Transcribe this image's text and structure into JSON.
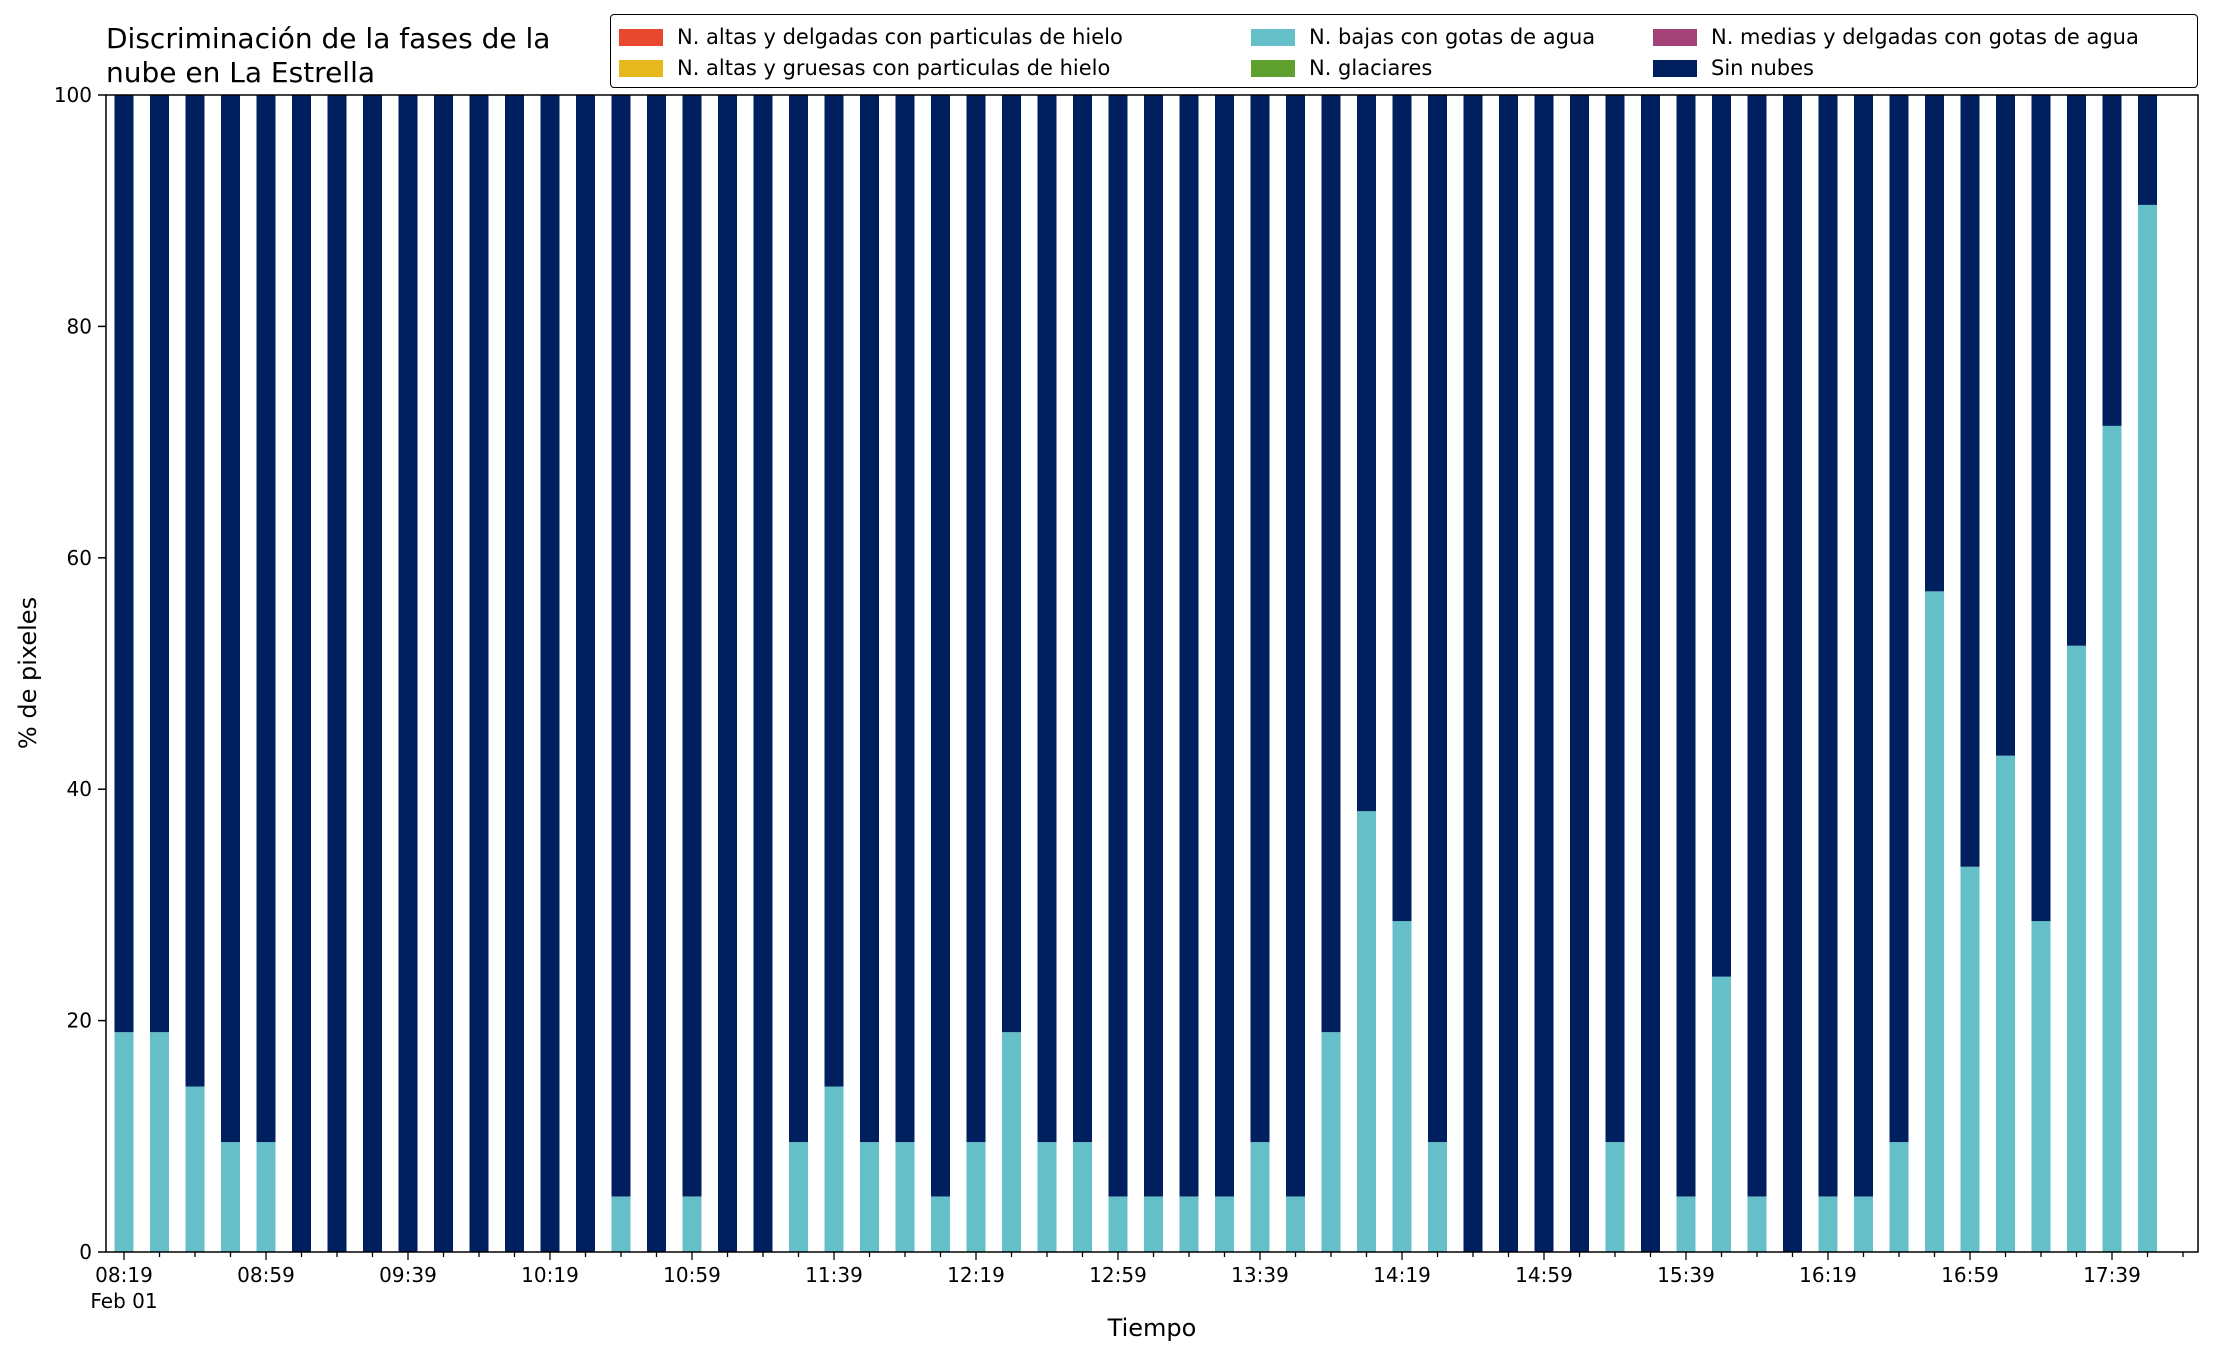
{
  "chart_data": {
    "type": "bar",
    "stacked": true,
    "title": "Discriminación de la fases de la\nnube en La Estrella",
    "xlabel": "Tiempo",
    "ylabel": "% de pixeles",
    "ylim": [
      0,
      100
    ],
    "yticks": [
      0,
      20,
      40,
      60,
      80,
      100
    ],
    "xtick_labels": [
      "08:19",
      "08:59",
      "09:39",
      "10:19",
      "10:59",
      "11:39",
      "12:19",
      "12:59",
      "13:39",
      "14:19",
      "14:59",
      "15:39",
      "16:19",
      "16:59",
      "17:39"
    ],
    "xtick_sublabel": "Feb 01",
    "legend_position": "top-right",
    "legend": [
      {
        "name": "N. altas y delgadas con particulas de hielo",
        "color": "#e8492e"
      },
      {
        "name": "N. altas y gruesas con particulas de hielo",
        "color": "#e6b81e"
      },
      {
        "name": "N. bajas con gotas de agua",
        "color": "#64bfc9"
      },
      {
        "name": "N. glaciares",
        "color": "#5fa02e"
      },
      {
        "name": "N. medias y delgadas con gotas de agua",
        "color": "#a24276"
      },
      {
        "name": "Sin nubes",
        "color": "#001f5f"
      }
    ],
    "bar_count": 58,
    "series": [
      {
        "name": "N. bajas con gotas de agua",
        "color": "#64bfc9",
        "values": [
          19,
          19,
          14.3,
          9.5,
          9.5,
          0,
          0,
          0,
          0,
          0,
          0,
          0,
          0,
          0,
          4.8,
          0,
          4.8,
          0,
          0,
          9.5,
          14.3,
          9.5,
          9.5,
          4.8,
          9.5,
          19,
          9.5,
          9.5,
          4.8,
          4.8,
          4.8,
          4.8,
          9.5,
          4.8,
          19,
          38.1,
          28.6,
          9.5,
          0,
          0,
          0,
          0,
          9.5,
          0,
          4.8,
          23.8,
          4.8,
          0,
          4.8,
          4.8,
          9.5,
          57.1,
          33.3,
          42.9,
          28.6,
          52.4,
          71.4,
          90.5
        ]
      },
      {
        "name": "Sin nubes",
        "color": "#001f5f",
        "values": [
          81,
          81,
          85.7,
          90.5,
          90.5,
          100,
          100,
          100,
          100,
          100,
          100,
          100,
          100,
          100,
          95.2,
          100,
          95.2,
          100,
          100,
          90.5,
          85.7,
          90.5,
          90.5,
          95.2,
          90.5,
          81,
          90.5,
          90.5,
          95.2,
          95.2,
          95.2,
          95.2,
          90.5,
          95.2,
          81,
          61.9,
          71.4,
          90.5,
          100,
          100,
          100,
          100,
          90.5,
          100,
          95.2,
          76.2,
          95.2,
          100,
          95.2,
          95.2,
          90.5,
          42.9,
          66.7,
          57.1,
          71.4,
          47.6,
          28.6,
          9.5
        ]
      }
    ]
  }
}
